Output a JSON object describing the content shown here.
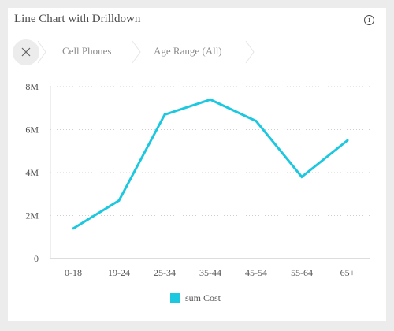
{
  "title": "Line Chart with Drilldown",
  "info_glyph": "i",
  "icons": {
    "info": "info-icon",
    "close": "close-icon"
  },
  "breadcrumbs": [
    "Cell Phones",
    "Age Range (All)"
  ],
  "chart_data": {
    "type": "line",
    "categories": [
      "0-18",
      "19-24",
      "25-34",
      "35-44",
      "45-54",
      "55-64",
      "65+"
    ],
    "series": [
      {
        "name": "sum Cost",
        "values": [
          1.4,
          2.7,
          6.7,
          7.4,
          6.4,
          3.8,
          5.5
        ]
      }
    ],
    "ylim": [
      0,
      8
    ],
    "yticks": [
      0,
      2,
      4,
      6,
      8
    ],
    "ytick_labels": [
      "0",
      "2M",
      "4M",
      "6M",
      "8M"
    ],
    "grid": true,
    "legend_position": "bottom",
    "color": "#1cc7e0"
  }
}
